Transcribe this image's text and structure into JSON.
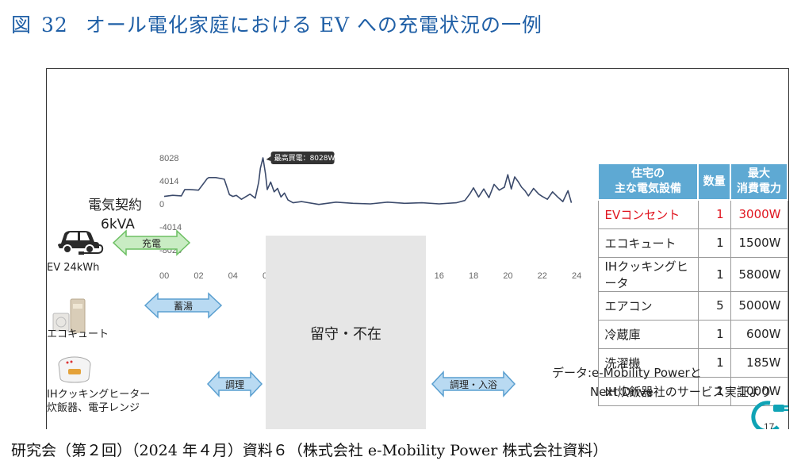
{
  "figure": {
    "label": "図",
    "number": "32",
    "title": "オール電化家庭における EV への充電状況の一例"
  },
  "contract": {
    "line1": "電気契約",
    "line2": "6kVA"
  },
  "chart_data": {
    "type": "line",
    "title": "",
    "xlabel": "",
    "ylabel": "",
    "x_tick_labels": [
      "00",
      "02",
      "04",
      "06",
      "08",
      "10",
      "12",
      "14",
      "16",
      "18",
      "20",
      "22",
      "24"
    ],
    "y_tick_labels": [
      "8028",
      "4014",
      "0",
      "-4014",
      "-8028"
    ],
    "y_ticks": [
      8028,
      4014,
      0,
      -4014,
      -8028
    ],
    "xlim": [
      0,
      24
    ],
    "ylim": [
      -8028,
      8028
    ],
    "grid": false,
    "annotation": {
      "label": "最高買電：8028W",
      "x": 5.75,
      "y": 8028
    },
    "series": [
      {
        "color": "#3b4a6b",
        "x": [
          0,
          0.5,
          1.0,
          1.2,
          1.5,
          2.0,
          2.5,
          2.6,
          3.0,
          3.5,
          3.8,
          4.0,
          4.2,
          4.5,
          5.0,
          5.3,
          5.5,
          5.6,
          5.75,
          5.9,
          6.0,
          6.2,
          6.4,
          6.6,
          6.8,
          7.0,
          7.2,
          7.5,
          8.0,
          9.0,
          10.0,
          11.0,
          12.0,
          13.0,
          14.0,
          15.0,
          16.0,
          17.0,
          17.5,
          17.8,
          18.0,
          18.3,
          18.6,
          18.9,
          19.2,
          19.5,
          19.8,
          20.0,
          20.2,
          20.4,
          20.6,
          20.8,
          21.0,
          21.2,
          21.5,
          21.8,
          22.0,
          22.3,
          22.6,
          22.9,
          23.2,
          23.5,
          23.7
        ],
        "values": [
          1300,
          1500,
          1400,
          2500,
          2500,
          2400,
          4400,
          4600,
          4600,
          4300,
          1600,
          1300,
          1500,
          800,
          1700,
          1000,
          3800,
          6200,
          8028,
          5200,
          2500,
          3800,
          2100,
          2700,
          1200,
          1900,
          700,
          200,
          400,
          -100,
          300,
          100,
          0,
          300,
          100,
          200,
          0,
          200,
          600,
          1800,
          2800,
          1200,
          2600,
          1100,
          3400,
          2400,
          2900,
          5100,
          2600,
          4700,
          3900,
          2900,
          2300,
          1400,
          2700,
          1700,
          1300,
          800,
          2100,
          1200,
          400,
          2300,
          200
        ]
      }
    ]
  },
  "table": {
    "headers": [
      "住宅の\n主な電気設備",
      "数量",
      "最大\n消費電力"
    ],
    "rows": [
      {
        "name": "EVコンセント",
        "qty": "1",
        "power": "3000W",
        "highlight": true
      },
      {
        "name": "エコキュート",
        "qty": "1",
        "power": "1500W",
        "highlight": false
      },
      {
        "name": "IHクッキングヒータ",
        "qty": "1",
        "power": "5800W",
        "highlight": false
      },
      {
        "name": "エアコン",
        "qty": "5",
        "power": "5000W",
        "highlight": false
      },
      {
        "name": "冷蔵庫",
        "qty": "1",
        "power": "600W",
        "highlight": false
      },
      {
        "name": "洗濯機",
        "qty": "1",
        "power": "185W",
        "highlight": false
      },
      {
        "name": "IH炊飯器",
        "qty": "1",
        "power": "1000W",
        "highlight": false
      }
    ],
    "highlight_color": "#e0141e",
    "header_color": "#5ea9d3"
  },
  "devices": {
    "ev": {
      "label": "EV 24kWh",
      "icon": "car-icon"
    },
    "ecocute": {
      "label": "エコキュート",
      "icon": "water-heater-icon"
    },
    "cooking": {
      "label_line1": "IHクッキングヒーター",
      "label_line2": "炊飯器、電子レンジ",
      "icon": "rice-cooker-icon"
    }
  },
  "arrows": {
    "charge": {
      "label": "充電",
      "color": "#c9ecc3",
      "border": "#6cbf62"
    },
    "hot_water": {
      "label": "蓄湯",
      "color": "#b9daf2",
      "border": "#5a9fd0"
    },
    "cooking": {
      "label": "調理",
      "color": "#b9daf2",
      "border": "#5a9fd0"
    },
    "cooking_bath": {
      "label": "調理・入浴",
      "color": "#b9daf2",
      "border": "#5a9fd0"
    }
  },
  "absent_box": {
    "label": "留守・不在"
  },
  "source_note": {
    "line1": "データ:e-Mobility Powerと",
    "line2": "Next Drive社のサービス実証より"
  },
  "logo": {
    "text": "17",
    "icon": "plug-logo-icon"
  },
  "caption": "研究会（第２回）（2024 年４月）資料６（株式会社 e-Mobility Power 株式会社資料）"
}
